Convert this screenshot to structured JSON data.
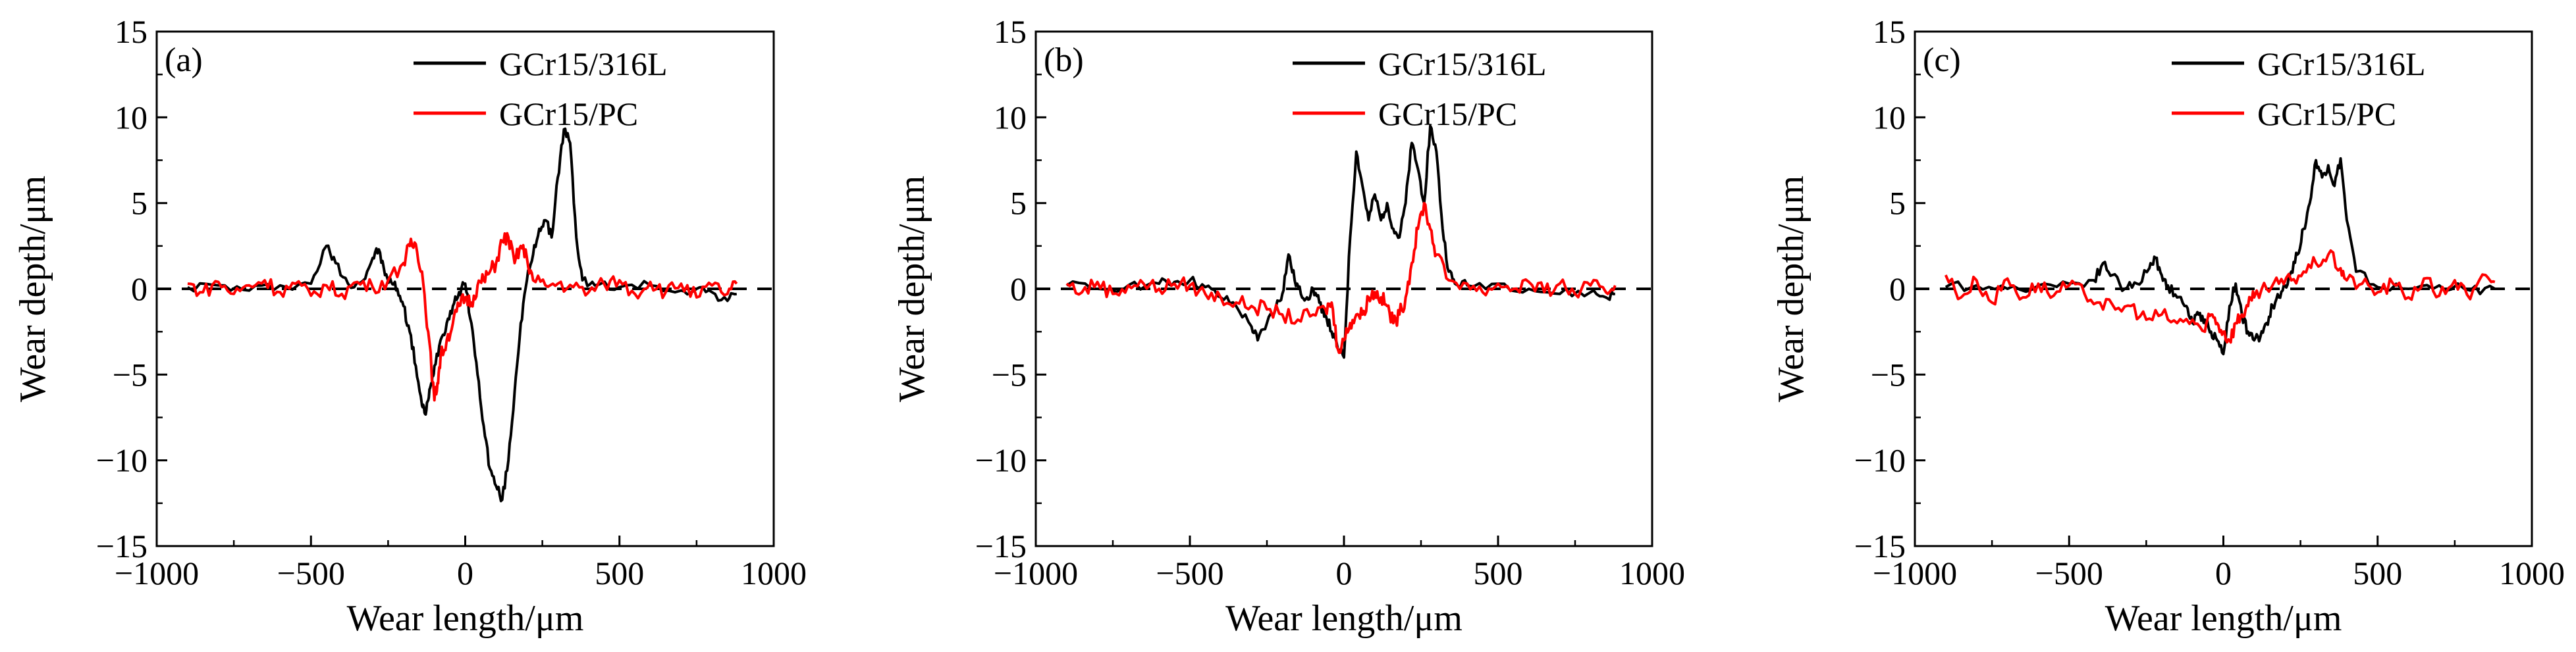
{
  "chart_data": [
    {
      "type": "line",
      "panel_label": "(a)",
      "xlabel": "Wear length/μm",
      "ylabel": "Wear depth/μm",
      "xlim": [
        -1000,
        1000
      ],
      "ylim": [
        -15,
        15
      ],
      "x_ticks": [
        -1000,
        -500,
        0,
        500,
        1000
      ],
      "y_ticks": [
        -15,
        -10,
        -5,
        0,
        5,
        10,
        15
      ],
      "x_tick_labels": [
        "−1000",
        "−500",
        "0",
        "500",
        "1000"
      ],
      "y_tick_labels": [
        "−15",
        "−10",
        "−5",
        "0",
        "5",
        "10",
        "15"
      ],
      "reference_line": {
        "y": 0,
        "style": "dashed"
      },
      "legend_position": "top-right",
      "series": [
        {
          "name": "GCr15/316L",
          "color": "#000000",
          "x": [
            -900,
            -800,
            -700,
            -600,
            -500,
            -450,
            -420,
            -380,
            -330,
            -300,
            -280,
            -260,
            -240,
            -220,
            -200,
            -180,
            -160,
            -140,
            -130,
            -120,
            -110,
            -100,
            -80,
            -60,
            -40,
            -20,
            0,
            20,
            40,
            60,
            80,
            100,
            120,
            140,
            160,
            180,
            200,
            220,
            240,
            260,
            280,
            300,
            320,
            340,
            360,
            380,
            420,
            500,
            600,
            700,
            750,
            800,
            850,
            880
          ],
          "y": [
            0.1,
            0.2,
            -0.1,
            0.2,
            0.3,
            2.5,
            1.5,
            0.3,
            0.5,
            1.8,
            2.3,
            0.8,
            0.4,
            0.0,
            -1.0,
            -2.5,
            -4.5,
            -6.8,
            -7.3,
            -6.5,
            -5.5,
            -4.5,
            -3.0,
            -2.0,
            -1.0,
            -0.2,
            0.3,
            -2.0,
            -5.0,
            -8.0,
            -10.5,
            -11.5,
            -12.3,
            -10.0,
            -6.0,
            -2.0,
            0.5,
            2.0,
            3.5,
            4.0,
            3.0,
            6.5,
            9.3,
            8.5,
            3.0,
            0.5,
            0.2,
            0.1,
            0.2,
            -0.1,
            0.0,
            -0.2,
            -0.7,
            -0.3
          ]
        },
        {
          "name": "GCr15/PC",
          "color": "#ff0000",
          "x": [
            -900,
            -850,
            -800,
            -750,
            -700,
            -650,
            -600,
            -550,
            -500,
            -450,
            -400,
            -350,
            -300,
            -250,
            -200,
            -180,
            -160,
            -140,
            -120,
            -100,
            -90,
            -80,
            -60,
            -40,
            -20,
            0,
            20,
            40,
            60,
            80,
            100,
            120,
            140,
            160,
            180,
            200,
            220,
            260,
            300,
            350,
            400,
            450,
            500,
            550,
            600,
            650,
            700,
            750,
            800,
            850,
            880
          ],
          "y": [
            0.3,
            -0.2,
            0.4,
            -0.3,
            0.2,
            0.5,
            -0.2,
            0.3,
            -0.4,
            0.2,
            -0.3,
            0.4,
            0.1,
            0.5,
            1.5,
            2.5,
            2.6,
            1.0,
            -2.5,
            -6.5,
            -5.5,
            -4.0,
            -3.0,
            -2.0,
            -1.0,
            -0.5,
            -0.8,
            0.2,
            0.5,
            1.0,
            1.5,
            2.8,
            3.0,
            1.5,
            2.5,
            1.8,
            0.5,
            0.2,
            0.3,
            0.1,
            -0.2,
            0.3,
            0.5,
            -0.3,
            0.4,
            -0.2,
            0.3,
            -0.5,
            0.2,
            -0.3,
            0.3
          ]
        }
      ]
    },
    {
      "type": "line",
      "panel_label": "(b)",
      "xlabel": "Wear length/μm",
      "ylabel": "Wear depth/μm",
      "xlim": [
        -1000,
        1000
      ],
      "ylim": [
        -15,
        15
      ],
      "x_ticks": [
        -1000,
        -500,
        0,
        500,
        1000
      ],
      "y_ticks": [
        -15,
        -10,
        -5,
        0,
        5,
        10,
        15
      ],
      "x_tick_labels": [
        "−1000",
        "−500",
        "0",
        "500",
        "1000"
      ],
      "y_tick_labels": [
        "−15",
        "−10",
        "−5",
        "0",
        "5",
        "10",
        "15"
      ],
      "reference_line": {
        "y": 0,
        "style": "dashed"
      },
      "legend_position": "top-right",
      "series": [
        {
          "name": "GCr15/316L",
          "color": "#000000",
          "x": [
            -900,
            -800,
            -700,
            -600,
            -550,
            -500,
            -450,
            -400,
            -350,
            -300,
            -280,
            -250,
            -220,
            -200,
            -180,
            -160,
            -140,
            -120,
            -100,
            -80,
            -60,
            -40,
            -20,
            0,
            20,
            40,
            60,
            80,
            100,
            120,
            140,
            160,
            180,
            200,
            220,
            240,
            260,
            280,
            300,
            320,
            340,
            360,
            400,
            500,
            600,
            700,
            800,
            850,
            880
          ],
          "y": [
            0.2,
            0.0,
            0.2,
            0.3,
            0.4,
            0.5,
            0.1,
            -0.5,
            -1.0,
            -2.2,
            -3.0,
            -2.0,
            -1.0,
            -0.3,
            2.0,
            0.5,
            -0.3,
            -0.5,
            0.0,
            -0.8,
            -1.5,
            -2.5,
            -3.5,
            -4.0,
            3.0,
            8.0,
            6.0,
            4.0,
            5.5,
            4.0,
            5.0,
            3.5,
            3.0,
            5.0,
            8.5,
            7.0,
            5.0,
            9.5,
            8.0,
            3.5,
            1.0,
            0.3,
            0.2,
            0.3,
            0.0,
            -0.3,
            -0.2,
            -0.5,
            -0.3
          ]
        },
        {
          "name": "GCr15/PC",
          "color": "#ff0000",
          "x": [
            -900,
            -850,
            -800,
            -750,
            -700,
            -650,
            -600,
            -550,
            -500,
            -450,
            -400,
            -350,
            -300,
            -250,
            -200,
            -150,
            -100,
            -60,
            -40,
            -20,
            0,
            20,
            40,
            60,
            80,
            100,
            120,
            140,
            160,
            180,
            200,
            220,
            240,
            260,
            280,
            300,
            340,
            400,
            450,
            500,
            550,
            600,
            650,
            700,
            750,
            800,
            850,
            880
          ],
          "y": [
            0.3,
            -0.2,
            0.4,
            -0.3,
            0.2,
            0.3,
            0.0,
            0.3,
            0.2,
            -0.3,
            -0.5,
            -0.8,
            -1.0,
            -1.2,
            -1.5,
            -1.8,
            -1.5,
            -1.2,
            -0.8,
            -3.5,
            -3.0,
            -2.0,
            -1.5,
            -1.5,
            -0.5,
            -0.2,
            -0.5,
            -1.0,
            -2.0,
            -1.5,
            -0.5,
            1.5,
            3.5,
            5.0,
            3.5,
            2.0,
            0.5,
            0.3,
            -0.2,
            0.3,
            0.0,
            0.4,
            -0.2,
            0.3,
            -0.3,
            0.2,
            -0.2,
            0.2
          ]
        }
      ]
    },
    {
      "type": "line",
      "panel_label": "(c)",
      "xlabel": "Wear length/μm",
      "ylabel": "Wear depth/μm",
      "xlim": [
        -1000,
        1000
      ],
      "ylim": [
        -15,
        15
      ],
      "x_ticks": [
        -1000,
        -500,
        0,
        500,
        1000
      ],
      "y_ticks": [
        -15,
        -10,
        -5,
        0,
        5,
        10,
        15
      ],
      "x_tick_labels": [
        "−1000",
        "−500",
        "0",
        "500",
        "1000"
      ],
      "y_tick_labels": [
        "−15",
        "−10",
        "−5",
        "0",
        "5",
        "10",
        "15"
      ],
      "reference_line": {
        "y": 0,
        "style": "dashed"
      },
      "legend_position": "top-right",
      "series": [
        {
          "name": "GCr15/316L",
          "color": "#000000",
          "x": [
            -900,
            -800,
            -700,
            -600,
            -500,
            -420,
            -390,
            -360,
            -320,
            -280,
            -240,
            -220,
            -200,
            -180,
            -150,
            -120,
            -100,
            -80,
            -60,
            -40,
            -20,
            0,
            20,
            40,
            60,
            80,
            100,
            120,
            140,
            160,
            180,
            200,
            220,
            240,
            260,
            280,
            300,
            320,
            340,
            360,
            380,
            400,
            430,
            500,
            600,
            700,
            800,
            880
          ],
          "y": [
            0.1,
            0.2,
            0.0,
            0.2,
            0.3,
            0.5,
            1.5,
            0.8,
            0.0,
            0.3,
            1.2,
            1.8,
            0.8,
            0.2,
            -0.5,
            -1.0,
            -2.0,
            -1.5,
            -1.8,
            -2.5,
            -3.0,
            -3.8,
            -1.0,
            0.3,
            -1.5,
            -2.5,
            -3.0,
            -2.8,
            -2.0,
            -1.0,
            -0.5,
            0.2,
            1.0,
            2.0,
            3.5,
            5.0,
            7.5,
            6.5,
            7.2,
            6.0,
            7.6,
            4.0,
            1.0,
            0.1,
            0.0,
            0.2,
            -0.1,
            0.0
          ]
        },
        {
          "name": "GCr15/PC",
          "color": "#ff0000",
          "x": [
            -900,
            -850,
            -800,
            -750,
            -700,
            -650,
            -600,
            -550,
            -500,
            -450,
            -400,
            -350,
            -300,
            -250,
            -200,
            -150,
            -100,
            -60,
            -40,
            -20,
            0,
            20,
            40,
            60,
            80,
            100,
            140,
            180,
            220,
            260,
            300,
            340,
            380,
            400,
            450,
            500,
            550,
            600,
            650,
            700,
            750,
            800,
            850,
            880
          ],
          "y": [
            0.8,
            -0.5,
            0.5,
            -0.8,
            0.6,
            -0.5,
            0.3,
            -0.4,
            0.2,
            -0.3,
            -0.8,
            -1.2,
            -1.0,
            -1.8,
            -1.5,
            -2.0,
            -1.8,
            -2.5,
            -1.5,
            -2.0,
            -2.5,
            -3.0,
            -2.0,
            -1.5,
            -1.0,
            -0.5,
            0.0,
            0.3,
            0.5,
            1.0,
            1.5,
            2.0,
            1.2,
            0.5,
            0.3,
            -0.2,
            0.3,
            -0.5,
            0.6,
            -0.4,
            0.5,
            -0.6,
            0.8,
            0.4
          ]
        }
      ]
    }
  ]
}
